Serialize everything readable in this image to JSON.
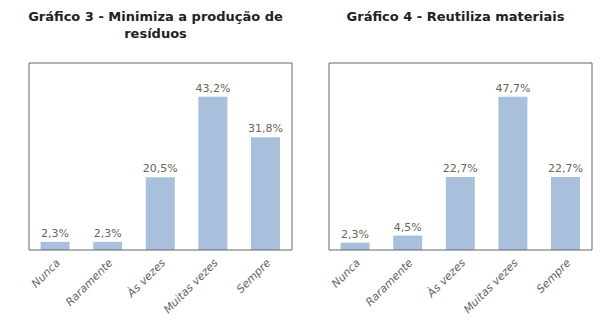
{
  "chart_data": [
    {
      "type": "bar",
      "title": "Gráfico 3 - Minimiza a produção de\nresíduos",
      "categories": [
        "Nunca",
        "Raramente",
        "Às vezes",
        "Muitas vezes",
        "Sempre"
      ],
      "values": [
        2.3,
        2.3,
        20.5,
        43.2,
        31.8
      ],
      "value_labels": [
        "2,3%",
        "2,3%",
        "20,5%",
        "43,2%",
        "31,8%"
      ],
      "color": "#a8c0dc",
      "ylim": [
        0,
        52.704
      ],
      "data_labels": true,
      "tick_labels": "x"
    },
    {
      "type": "bar",
      "title": "Gráfico 4 - Reutiliza materiais",
      "categories": [
        "Nunca",
        "Raramente",
        "Às vezes",
        "Muitas vezes",
        "Sempre"
      ],
      "values": [
        2.3,
        4.5,
        22.7,
        47.7,
        22.7
      ],
      "value_labels": [
        "2,3%",
        "4,5%",
        "22,7%",
        "47,7%",
        "22,7%"
      ],
      "color": "#a8c0dc",
      "ylim": [
        0,
        58.194
      ],
      "data_labels": true,
      "tick_labels": "x"
    }
  ]
}
